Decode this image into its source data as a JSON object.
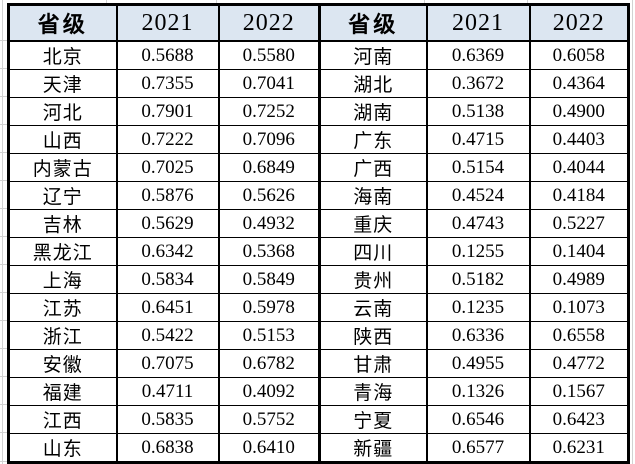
{
  "tables": [
    {
      "headers": [
        "省级",
        "2021",
        "2022"
      ],
      "rows": [
        [
          "北京",
          "0.5688",
          "0.5580"
        ],
        [
          "天津",
          "0.7355",
          "0.7041"
        ],
        [
          "河北",
          "0.7901",
          "0.7252"
        ],
        [
          "山西",
          "0.7222",
          "0.7096"
        ],
        [
          "内蒙古",
          "0.7025",
          "0.6849"
        ],
        [
          "辽宁",
          "0.5876",
          "0.5626"
        ],
        [
          "吉林",
          "0.5629",
          "0.4932"
        ],
        [
          "黑龙江",
          "0.6342",
          "0.5368"
        ],
        [
          "上海",
          "0.5834",
          "0.5849"
        ],
        [
          "江苏",
          "0.6451",
          "0.5978"
        ],
        [
          "浙江",
          "0.5422",
          "0.5153"
        ],
        [
          "安徽",
          "0.7075",
          "0.6782"
        ],
        [
          "福建",
          "0.4711",
          "0.4092"
        ],
        [
          "江西",
          "0.5835",
          "0.5752"
        ],
        [
          "山东",
          "0.6838",
          "0.6410"
        ]
      ]
    },
    {
      "headers": [
        "省级",
        "2021",
        "2022"
      ],
      "rows": [
        [
          "河南",
          "0.6369",
          "0.6058"
        ],
        [
          "湖北",
          "0.3672",
          "0.4364"
        ],
        [
          "湖南",
          "0.5138",
          "0.4900"
        ],
        [
          "广东",
          "0.4715",
          "0.4403"
        ],
        [
          "广西",
          "0.5154",
          "0.4044"
        ],
        [
          "海南",
          "0.4524",
          "0.4184"
        ],
        [
          "重庆",
          "0.4743",
          "0.5227"
        ],
        [
          "四川",
          "0.1255",
          "0.1404"
        ],
        [
          "贵州",
          "0.5182",
          "0.4989"
        ],
        [
          "云南",
          "0.1235",
          "0.1073"
        ],
        [
          "陕西",
          "0.6336",
          "0.6558"
        ],
        [
          "甘肃",
          "0.4955",
          "0.4772"
        ],
        [
          "青海",
          "0.1326",
          "0.1567"
        ],
        [
          "宁夏",
          "0.6546",
          "0.6423"
        ],
        [
          "新疆",
          "0.6577",
          "0.6231"
        ]
      ]
    }
  ],
  "colors": {
    "background": "#FFFFFF",
    "header_fill": "#DCE6F1",
    "border": "#000000",
    "gridline": "#D2D2D2"
  }
}
